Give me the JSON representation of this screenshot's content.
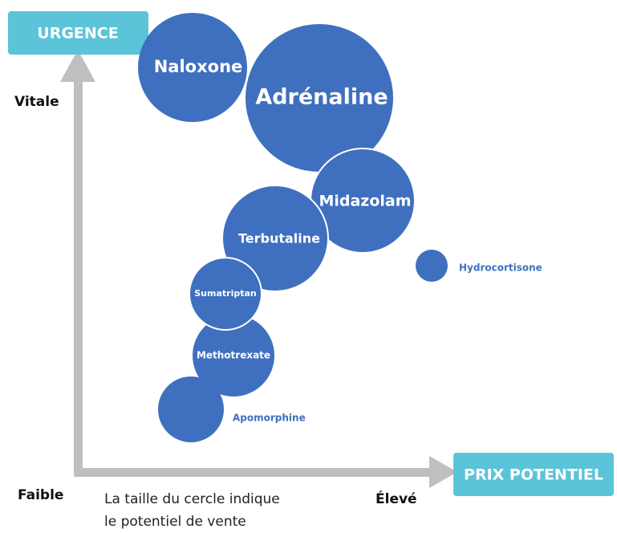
{
  "axes": {
    "y_title": "URGENCE",
    "x_title": "PRIX POTENTIEL",
    "y_high": "Vitale",
    "origin": "Faible",
    "x_high": "Élevé"
  },
  "note": [
    "La taille du cercle indique",
    "le potentiel de vente"
  ],
  "nodes": [
    {
      "label": "Naloxone"
    },
    {
      "label": "Adrénaline"
    },
    {
      "label": "Midazolam"
    },
    {
      "label": "Terbutaline"
    },
    {
      "label": "Sumatriptan"
    },
    {
      "label": "Methotrexate"
    },
    {
      "label": "Apomorphine"
    },
    {
      "label": "Hydrocortisone"
    }
  ]
}
